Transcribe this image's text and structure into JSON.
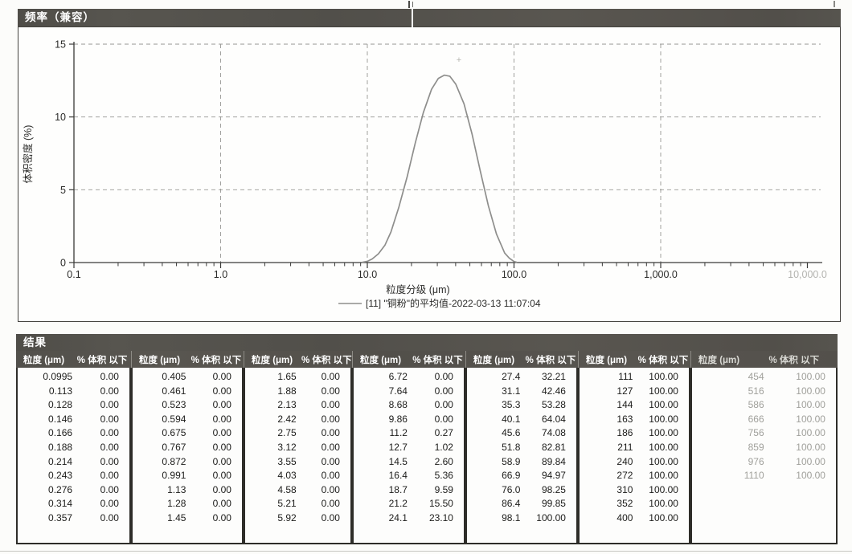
{
  "colors": {
    "bar_bg": "#55534d",
    "bar_text": "#ffffff",
    "curve": "#8e8e8c",
    "axis": "#3a3a38",
    "grid": "#979793",
    "tick_text": "#2b2b29",
    "faded_text": "#a0a09b",
    "faded_tick": "#b3b3af",
    "table_border": "#2e2d29"
  },
  "chart_panel": {
    "title": "频率（兼容）"
  },
  "chart_data": {
    "type": "line",
    "title": "频率（兼容）",
    "xlabel": "粒度分级 (μm)",
    "ylabel": "体积密度 (%)",
    "x_scale": "log",
    "xlim": [
      0.1,
      10000
    ],
    "ylim": [
      0,
      15
    ],
    "y_ticks": [
      0,
      5,
      10,
      15
    ],
    "x_tick_values": [
      0.1,
      1,
      10,
      100,
      1000,
      10000
    ],
    "x_tick_labels": [
      "0.1",
      "1.0",
      "10.0",
      "100.0",
      "1,000.0",
      "10,000.0"
    ],
    "grid": "dashed",
    "legend_position": "bottom-center",
    "legend": "[11] \"铜粉\"的平均值-2022-03-13 11:07:04",
    "series": [
      {
        "name": "[11] \"铜粉\"的平均值-2022-03-13 11:07:04",
        "color": "#8e8e8c",
        "points": [
          [
            9.3,
            0.02
          ],
          [
            10,
            0.08
          ],
          [
            10.8,
            0.25
          ],
          [
            11.9,
            0.6
          ],
          [
            13.2,
            1.2
          ],
          [
            14.5,
            2.1
          ],
          [
            16.4,
            3.8
          ],
          [
            18.7,
            5.9
          ],
          [
            21.2,
            8.2
          ],
          [
            24.1,
            10.3
          ],
          [
            27.4,
            11.9
          ],
          [
            30.5,
            12.65
          ],
          [
            33.5,
            12.87
          ],
          [
            36.5,
            12.8
          ],
          [
            40.1,
            12.25
          ],
          [
            45.6,
            10.9
          ],
          [
            51.8,
            8.8
          ],
          [
            58.9,
            6.3
          ],
          [
            66.9,
            3.9
          ],
          [
            76,
            1.95
          ],
          [
            86.4,
            0.65
          ],
          [
            93,
            0.3
          ],
          [
            100,
            0.07
          ],
          [
            104,
            0.02
          ]
        ]
      }
    ]
  },
  "results": {
    "title": "结果",
    "col_headers": {
      "size": "粒度 (μm)",
      "pct": "% 体积 以下"
    },
    "group_widths": [
      143,
      140,
      135,
      141,
      140,
      140,
      183
    ],
    "groups": [
      {
        "faded": false,
        "rows": [
          [
            "0.0995",
            "0.00"
          ],
          [
            "0.113",
            "0.00"
          ],
          [
            "0.128",
            "0.00"
          ],
          [
            "0.146",
            "0.00"
          ],
          [
            "0.166",
            "0.00"
          ],
          [
            "0.188",
            "0.00"
          ],
          [
            "0.214",
            "0.00"
          ],
          [
            "0.243",
            "0.00"
          ],
          [
            "0.276",
            "0.00"
          ],
          [
            "0.314",
            "0.00"
          ],
          [
            "0.357",
            "0.00"
          ]
        ]
      },
      {
        "faded": false,
        "rows": [
          [
            "0.405",
            "0.00"
          ],
          [
            "0.461",
            "0.00"
          ],
          [
            "0.523",
            "0.00"
          ],
          [
            "0.594",
            "0.00"
          ],
          [
            "0.675",
            "0.00"
          ],
          [
            "0.767",
            "0.00"
          ],
          [
            "0.872",
            "0.00"
          ],
          [
            "0.991",
            "0.00"
          ],
          [
            "1.13",
            "0.00"
          ],
          [
            "1.28",
            "0.00"
          ],
          [
            "1.45",
            "0.00"
          ]
        ]
      },
      {
        "faded": false,
        "rows": [
          [
            "1.65",
            "0.00"
          ],
          [
            "1.88",
            "0.00"
          ],
          [
            "2.13",
            "0.00"
          ],
          [
            "2.42",
            "0.00"
          ],
          [
            "2.75",
            "0.00"
          ],
          [
            "3.12",
            "0.00"
          ],
          [
            "3.55",
            "0.00"
          ],
          [
            "4.03",
            "0.00"
          ],
          [
            "4.58",
            "0.00"
          ],
          [
            "5.21",
            "0.00"
          ],
          [
            "5.92",
            "0.00"
          ]
        ]
      },
      {
        "faded": false,
        "rows": [
          [
            "6.72",
            "0.00"
          ],
          [
            "7.64",
            "0.00"
          ],
          [
            "8.68",
            "0.00"
          ],
          [
            "9.86",
            "0.00"
          ],
          [
            "11.2",
            "0.27"
          ],
          [
            "12.7",
            "1.02"
          ],
          [
            "14.5",
            "2.60"
          ],
          [
            "16.4",
            "5.36"
          ],
          [
            "18.7",
            "9.59"
          ],
          [
            "21.2",
            "15.50"
          ],
          [
            "24.1",
            "23.10"
          ]
        ]
      },
      {
        "faded": false,
        "rows": [
          [
            "27.4",
            "32.21"
          ],
          [
            "31.1",
            "42.46"
          ],
          [
            "35.3",
            "53.28"
          ],
          [
            "40.1",
            "64.04"
          ],
          [
            "45.6",
            "74.08"
          ],
          [
            "51.8",
            "82.81"
          ],
          [
            "58.9",
            "89.84"
          ],
          [
            "66.9",
            "94.97"
          ],
          [
            "76.0",
            "98.25"
          ],
          [
            "86.4",
            "99.85"
          ],
          [
            "98.1",
            "100.00"
          ]
        ]
      },
      {
        "faded": false,
        "rows": [
          [
            "111",
            "100.00"
          ],
          [
            "127",
            "100.00"
          ],
          [
            "144",
            "100.00"
          ],
          [
            "163",
            "100.00"
          ],
          [
            "186",
            "100.00"
          ],
          [
            "211",
            "100.00"
          ],
          [
            "240",
            "100.00"
          ],
          [
            "272",
            "100.00"
          ],
          [
            "310",
            "100.00"
          ],
          [
            "352",
            "100.00"
          ],
          [
            "400",
            "100.00"
          ]
        ]
      },
      {
        "faded": true,
        "rows": [
          [
            "454",
            "100.00"
          ],
          [
            "516",
            "100.00"
          ],
          [
            "586",
            "100.00"
          ],
          [
            "666",
            "100.00"
          ],
          [
            "756",
            "100.00"
          ],
          [
            "859",
            "100.00"
          ],
          [
            "976",
            "100.00"
          ],
          [
            "1110",
            "100.00"
          ]
        ]
      }
    ]
  },
  "artifacts": {
    "cross": "+"
  }
}
